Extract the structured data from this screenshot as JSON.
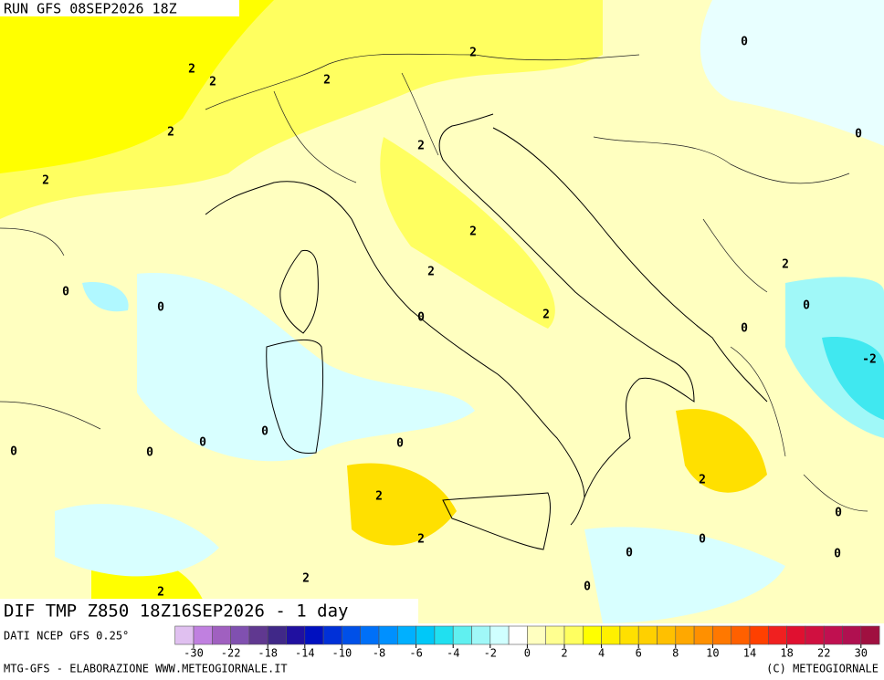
{
  "header": {
    "run": "RUN GFS 08SEP2026 18Z"
  },
  "map": {
    "title": "DIF TMP Z850 18Z16SEP2026 - 1 day",
    "contour_labels": [
      2,
      0,
      2,
      2,
      2,
      2,
      0,
      2,
      2,
      2,
      2,
      2,
      0,
      0,
      0,
      2,
      0,
      0,
      -2,
      0,
      0,
      0,
      0,
      0,
      2,
      2,
      0,
      2,
      0,
      0,
      0,
      2,
      2,
      0
    ]
  },
  "colorbar": {
    "ticks": [
      -30,
      -22,
      -18,
      -14,
      -10,
      -8,
      -6,
      -4,
      -2,
      0,
      2,
      4,
      6,
      8,
      10,
      14,
      18,
      22,
      30
    ],
    "colors": [
      "#e0c0f0",
      "#c080e0",
      "#a060c0",
      "#8050b0",
      "#603890",
      "#402888",
      "#2010a0",
      "#0010c0",
      "#0030d8",
      "#0050e8",
      "#0070f8",
      "#0090ff",
      "#00b0ff",
      "#00c8f8",
      "#20e0f0",
      "#60f0f0",
      "#a0f8f8",
      "#d0ffff",
      "#ffffff",
      "#ffffc0",
      "#ffff90",
      "#ffff60",
      "#ffff00",
      "#fff000",
      "#ffe000",
      "#ffd000",
      "#ffc000",
      "#ffa800",
      "#ff9000",
      "#ff7800",
      "#ff6000",
      "#ff4000",
      "#f02020",
      "#e01030",
      "#d01040",
      "#c01050",
      "#b01050",
      "#a01040"
    ]
  },
  "footer": {
    "source": "DATI NCEP GFS 0.25°",
    "credit": "MTG-GFS - ELABORAZIONE WWW.METEOGIORNALE.IT",
    "copyright": "(C) METEOGIORNALE"
  }
}
